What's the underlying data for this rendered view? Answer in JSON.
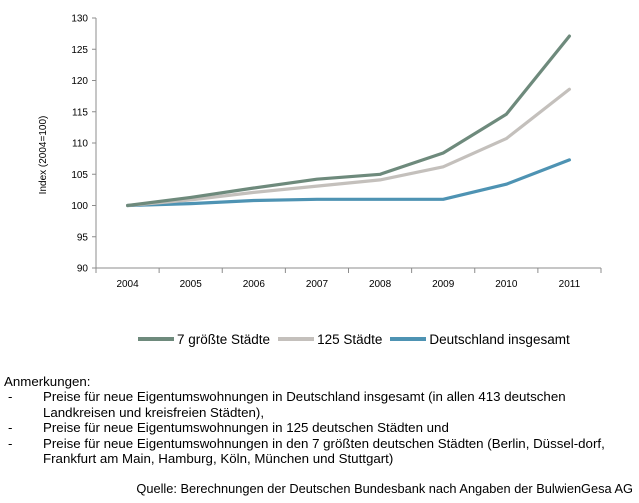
{
  "chart_data": {
    "type": "line",
    "x": [
      "2004",
      "2005",
      "2006",
      "2007",
      "2008",
      "2009",
      "2010",
      "2011"
    ],
    "series": [
      {
        "name": "7 größte Städte",
        "color": "#6e8a7c",
        "values": [
          100,
          101.3,
          102.8,
          104.2,
          105.0,
          108.4,
          114.6,
          127.1
        ]
      },
      {
        "name": "125 Städte",
        "color": "#c4c0bc",
        "values": [
          100,
          100.9,
          102.1,
          103.1,
          104.1,
          106.2,
          110.7,
          118.6
        ]
      },
      {
        "name": "Deutschland insgesamt",
        "color": "#4e93b3",
        "values": [
          100,
          100.3,
          100.8,
          101.0,
          101.0,
          101.0,
          103.4,
          107.3
        ]
      }
    ],
    "ylabel": "Index (2004=100)",
    "ylim": [
      90,
      130
    ],
    "yticks": [
      90,
      95,
      100,
      105,
      110,
      115,
      120,
      125,
      130
    ],
    "ytick_labels": [
      "90",
      "95",
      "100",
      "105",
      "110",
      "115",
      "120",
      "125",
      "130"
    ],
    "grid": false,
    "legend_position": "bottom"
  },
  "notes": {
    "title": "Anmerkungen:",
    "items": [
      {
        "dash": "-",
        "text": "Preise für neue Eigentumswohnungen in Deutschland insgesamt (in allen 413 deutschen Landkreisen und kreisfreien Städten),"
      },
      {
        "dash": "-",
        "text": "Preise für neue Eigentumswohnungen in 125 deutschen Städten und"
      },
      {
        "dash": "-",
        "text": "Preise für neue Eigentumswohnungen in den 7 größten deutschen Städten (Berlin, Düssel-dorf, Frankfurt am Main, Hamburg, Köln, München und Stuttgart)"
      }
    ]
  },
  "source": "Quelle: Berechnungen der Deutschen Bundesbank nach Angaben der BulwienGesa AG"
}
